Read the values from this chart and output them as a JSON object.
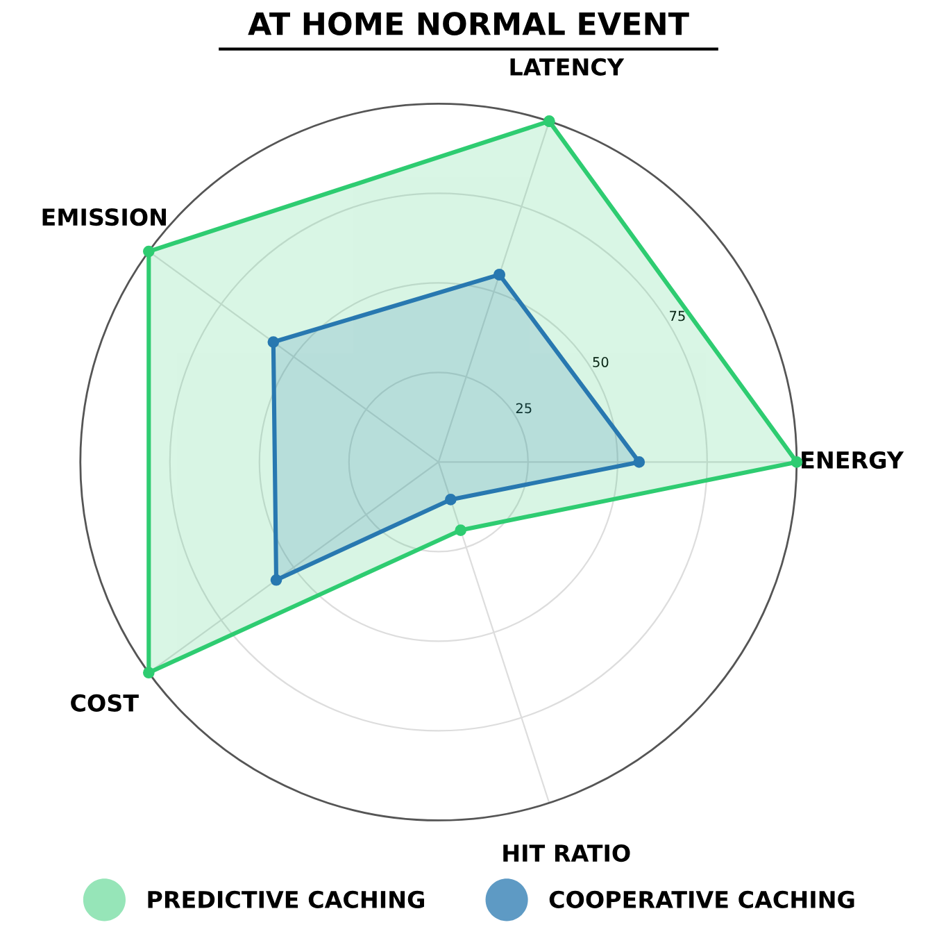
{
  "chart_data": {
    "type": "radar",
    "title": "AT HOME NORMAL EVENT",
    "categories": [
      "LATENCY",
      "ENERGY",
      "HIT RATIO",
      "COST",
      "EMISSION"
    ],
    "series": [
      {
        "name": "PREDICTIVE CACHING",
        "color": "#2ecc71",
        "values": [
          100,
          100,
          20,
          100,
          100
        ]
      },
      {
        "name": "COOPERATIVE CACHING",
        "color": "#2878b0",
        "values": [
          55,
          56,
          11,
          56,
          57
        ]
      }
    ],
    "ylim": [
      0,
      100
    ],
    "yticks": [
      25,
      50,
      75
    ],
    "grid": true,
    "legend": "bottom",
    "marker": "circle"
  }
}
